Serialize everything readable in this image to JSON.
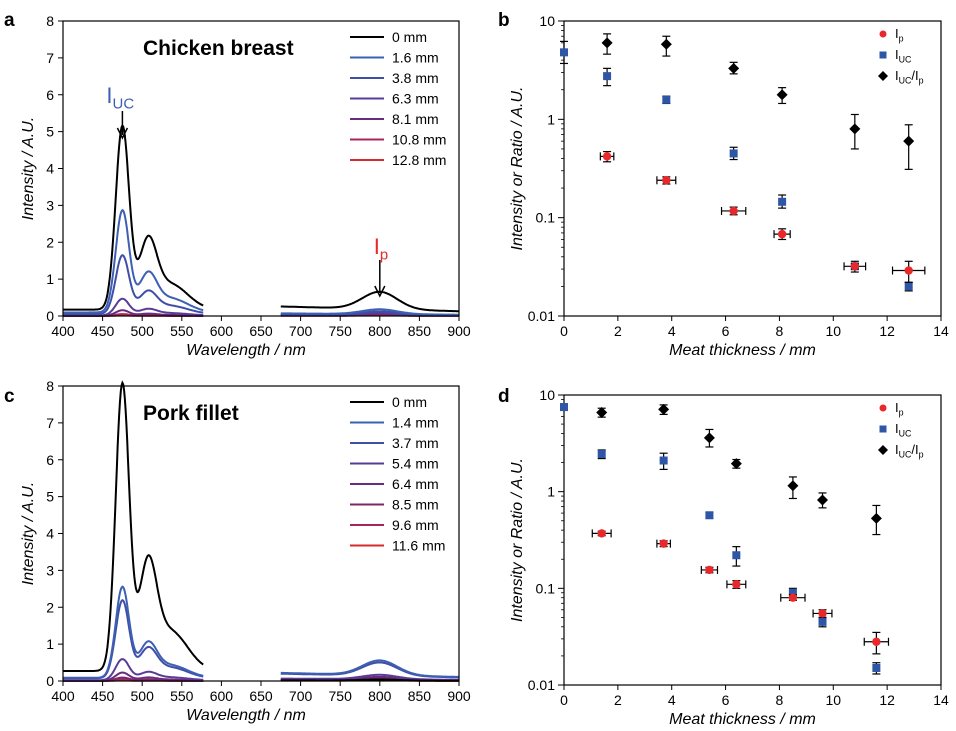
{
  "figure": {
    "panel_labels": [
      "a",
      "b",
      "c",
      "d"
    ]
  },
  "chart_data": [
    {
      "panel": "a",
      "type": "line",
      "title": "Chicken breast",
      "xlabel": "Wavelength / nm",
      "ylabel": "Intensity / A.U.",
      "xlim": [
        400,
        900
      ],
      "ylim": [
        0,
        8
      ],
      "xticks": [
        400,
        450,
        500,
        550,
        600,
        650,
        700,
        750,
        800,
        850,
        900
      ],
      "yticks": [
        0,
        1,
        2,
        3,
        4,
        5,
        6,
        7,
        8
      ],
      "legend_position": "top-right",
      "series": [
        {
          "name": "0 mm",
          "color": "#000000",
          "peak_uc": 4.95,
          "peak_p": 0.47
        },
        {
          "name": "1.6 mm",
          "color": "#3d5fb4",
          "peak_uc": 2.75,
          "peak_p": 0.13
        },
        {
          "name": "3.8 mm",
          "color": "#3e4fa8",
          "peak_uc": 1.58,
          "peak_p": 0.09
        },
        {
          "name": "6.3 mm",
          "color": "#5a3c98",
          "peak_uc": 0.45,
          "peak_p": 0.06
        },
        {
          "name": "8.1 mm",
          "color": "#6b2a7c",
          "peak_uc": 0.15,
          "peak_p": 0.04
        },
        {
          "name": "10.8 mm",
          "color": "#a8245f",
          "peak_uc": 0.05,
          "peak_p": 0.02
        },
        {
          "name": "12.8 mm",
          "color": "#d52b2b",
          "peak_uc": 0.02,
          "peak_p": 0.015
        }
      ],
      "annotations": [
        {
          "text": "I",
          "sub": "UC",
          "color": "#3d5fb4",
          "x": 475
        },
        {
          "text": "I",
          "sub": "p",
          "color": "#e8282a",
          "x": 800
        }
      ]
    },
    {
      "panel": "b",
      "type": "scatter",
      "xlabel": "Meat thickness / mm",
      "ylabel": "Intensity or Ratio / A.U.",
      "xlim": [
        0,
        14
      ],
      "ylim": [
        0.01,
        10
      ],
      "yscale": "log",
      "xticks": [
        0,
        2,
        4,
        6,
        8,
        10,
        12,
        14
      ],
      "yticks": [
        0.01,
        0.1,
        1,
        10
      ],
      "ytick_labels": [
        "0.01",
        "0.1",
        "1",
        "10"
      ],
      "legend_position": "top-right",
      "series": [
        {
          "name": "I",
          "sub": "p",
          "marker": "circle",
          "color": "#e8282a",
          "x": [
            1.6,
            3.8,
            6.3,
            8.1,
            10.8,
            12.8
          ],
          "y": [
            0.42,
            0.24,
            0.117,
            0.068,
            0.032,
            0.029
          ],
          "xerr": [
            0.25,
            0.35,
            0.45,
            0.3,
            0.4,
            0.6
          ],
          "yerr_low": [
            0.37,
            0.22,
            0.107,
            0.06,
            0.03,
            0.022
          ],
          "yerr_high": [
            0.47,
            0.26,
            0.128,
            0.077,
            0.034,
            0.036
          ]
        },
        {
          "name": "I",
          "sub": "UC",
          "marker": "square",
          "color": "#2e56a6",
          "x": [
            0.0,
            1.6,
            3.8,
            6.3,
            8.1,
            10.8,
            12.8
          ],
          "y": [
            4.8,
            2.75,
            1.58,
            0.45,
            0.145,
            0.032,
            0.02
          ],
          "yerr_low": [
            3.7,
            2.2,
            1.45,
            0.39,
            0.125,
            0.028,
            0.018
          ],
          "yerr_high": [
            6.2,
            3.3,
            1.72,
            0.52,
            0.17,
            0.036,
            0.022
          ]
        },
        {
          "name": "I",
          "sub": "UC",
          "name_suffix": "/I",
          "suffix_sub": "p",
          "marker": "diamond",
          "color": "#000000",
          "x": [
            1.6,
            3.8,
            6.3,
            8.1,
            10.8,
            12.8
          ],
          "y": [
            6.0,
            5.8,
            3.3,
            1.78,
            0.8,
            0.6
          ],
          "yerr_low": [
            4.6,
            4.4,
            2.9,
            1.45,
            0.5,
            0.31
          ],
          "yerr_high": [
            7.4,
            7.0,
            3.8,
            2.1,
            1.12,
            0.88
          ]
        }
      ]
    },
    {
      "panel": "c",
      "type": "line",
      "title": "Pork fillet",
      "xlabel": "Wavelength / nm",
      "ylabel": "Intensity / A.U.",
      "xlim": [
        400,
        900
      ],
      "ylim": [
        0,
        8
      ],
      "xticks": [
        400,
        450,
        500,
        550,
        600,
        650,
        700,
        750,
        800,
        850,
        900
      ],
      "yticks": [
        0,
        1,
        2,
        3,
        4,
        5,
        6,
        7,
        8
      ],
      "legend_position": "top-right",
      "series": [
        {
          "name": "0 mm",
          "color": "#000000",
          "peak_uc": 7.75,
          "peak_p": 0.03
        },
        {
          "name": "1.4 mm",
          "color": "#3d5fb4",
          "peak_uc": 2.45,
          "peak_p": 0.4
        },
        {
          "name": "3.7 mm",
          "color": "#3e4fa8",
          "peak_uc": 2.1,
          "peak_p": 0.36
        },
        {
          "name": "5.4 mm",
          "color": "#5a3c98",
          "peak_uc": 0.57,
          "peak_p": 0.12
        },
        {
          "name": "6.4 mm",
          "color": "#6b2a7c",
          "peak_uc": 0.22,
          "peak_p": 0.08
        },
        {
          "name": "8.5 mm",
          "color": "#7a2867",
          "peak_uc": 0.09,
          "peak_p": 0.05
        },
        {
          "name": "9.6 mm",
          "color": "#a8245f",
          "peak_uc": 0.05,
          "peak_p": 0.03
        },
        {
          "name": "11.6 mm",
          "color": "#d52b2b",
          "peak_uc": 0.02,
          "peak_p": 0.02
        }
      ],
      "annotations": []
    },
    {
      "panel": "d",
      "type": "scatter",
      "xlabel": "Meat thickness / mm",
      "ylabel": "Intensity or Ratio / A.U.",
      "xlim": [
        0,
        14
      ],
      "ylim": [
        0.01,
        10
      ],
      "yscale": "log",
      "xticks": [
        0,
        2,
        4,
        6,
        8,
        10,
        12,
        14
      ],
      "yticks": [
        0.01,
        0.1,
        1,
        10
      ],
      "ytick_labels": [
        "0.01",
        "0.1",
        "1",
        "10"
      ],
      "legend_position": "top-right",
      "series": [
        {
          "name": "I",
          "sub": "p",
          "marker": "circle",
          "color": "#e8282a",
          "x": [
            1.4,
            3.7,
            5.4,
            6.4,
            8.5,
            9.6,
            11.6
          ],
          "y": [
            0.37,
            0.29,
            0.155,
            0.11,
            0.08,
            0.055,
            0.028
          ],
          "xerr": [
            0.35,
            0.25,
            0.3,
            0.35,
            0.45,
            0.35,
            0.45
          ],
          "yerr_low": [
            0.35,
            0.27,
            0.145,
            0.1,
            0.075,
            0.05,
            0.021
          ],
          "yerr_high": [
            0.39,
            0.31,
            0.165,
            0.12,
            0.086,
            0.06,
            0.035
          ]
        },
        {
          "name": "I",
          "sub": "UC",
          "marker": "square",
          "color": "#2e56a6",
          "x": [
            0.0,
            1.4,
            3.7,
            5.4,
            6.4,
            8.5,
            9.6,
            11.6
          ],
          "y": [
            7.5,
            2.45,
            2.1,
            0.57,
            0.22,
            0.09,
            0.045,
            0.015
          ],
          "yerr_low": [
            7.0,
            2.2,
            1.7,
            0.53,
            0.17,
            0.08,
            0.04,
            0.013
          ],
          "yerr_high": [
            8.1,
            2.7,
            2.5,
            0.61,
            0.27,
            0.1,
            0.05,
            0.017
          ]
        },
        {
          "name": "I",
          "sub": "UC",
          "name_suffix": "/I",
          "suffix_sub": "p",
          "marker": "diamond",
          "color": "#000000",
          "x": [
            1.4,
            3.7,
            5.4,
            6.4,
            8.5,
            9.6,
            11.6
          ],
          "y": [
            6.6,
            7.1,
            3.6,
            1.95,
            1.15,
            0.82,
            0.53
          ],
          "yerr_low": [
            5.9,
            6.3,
            2.9,
            1.75,
            0.85,
            0.68,
            0.36
          ],
          "yerr_high": [
            7.3,
            7.9,
            4.4,
            2.15,
            1.42,
            0.97,
            0.72
          ]
        }
      ]
    }
  ]
}
